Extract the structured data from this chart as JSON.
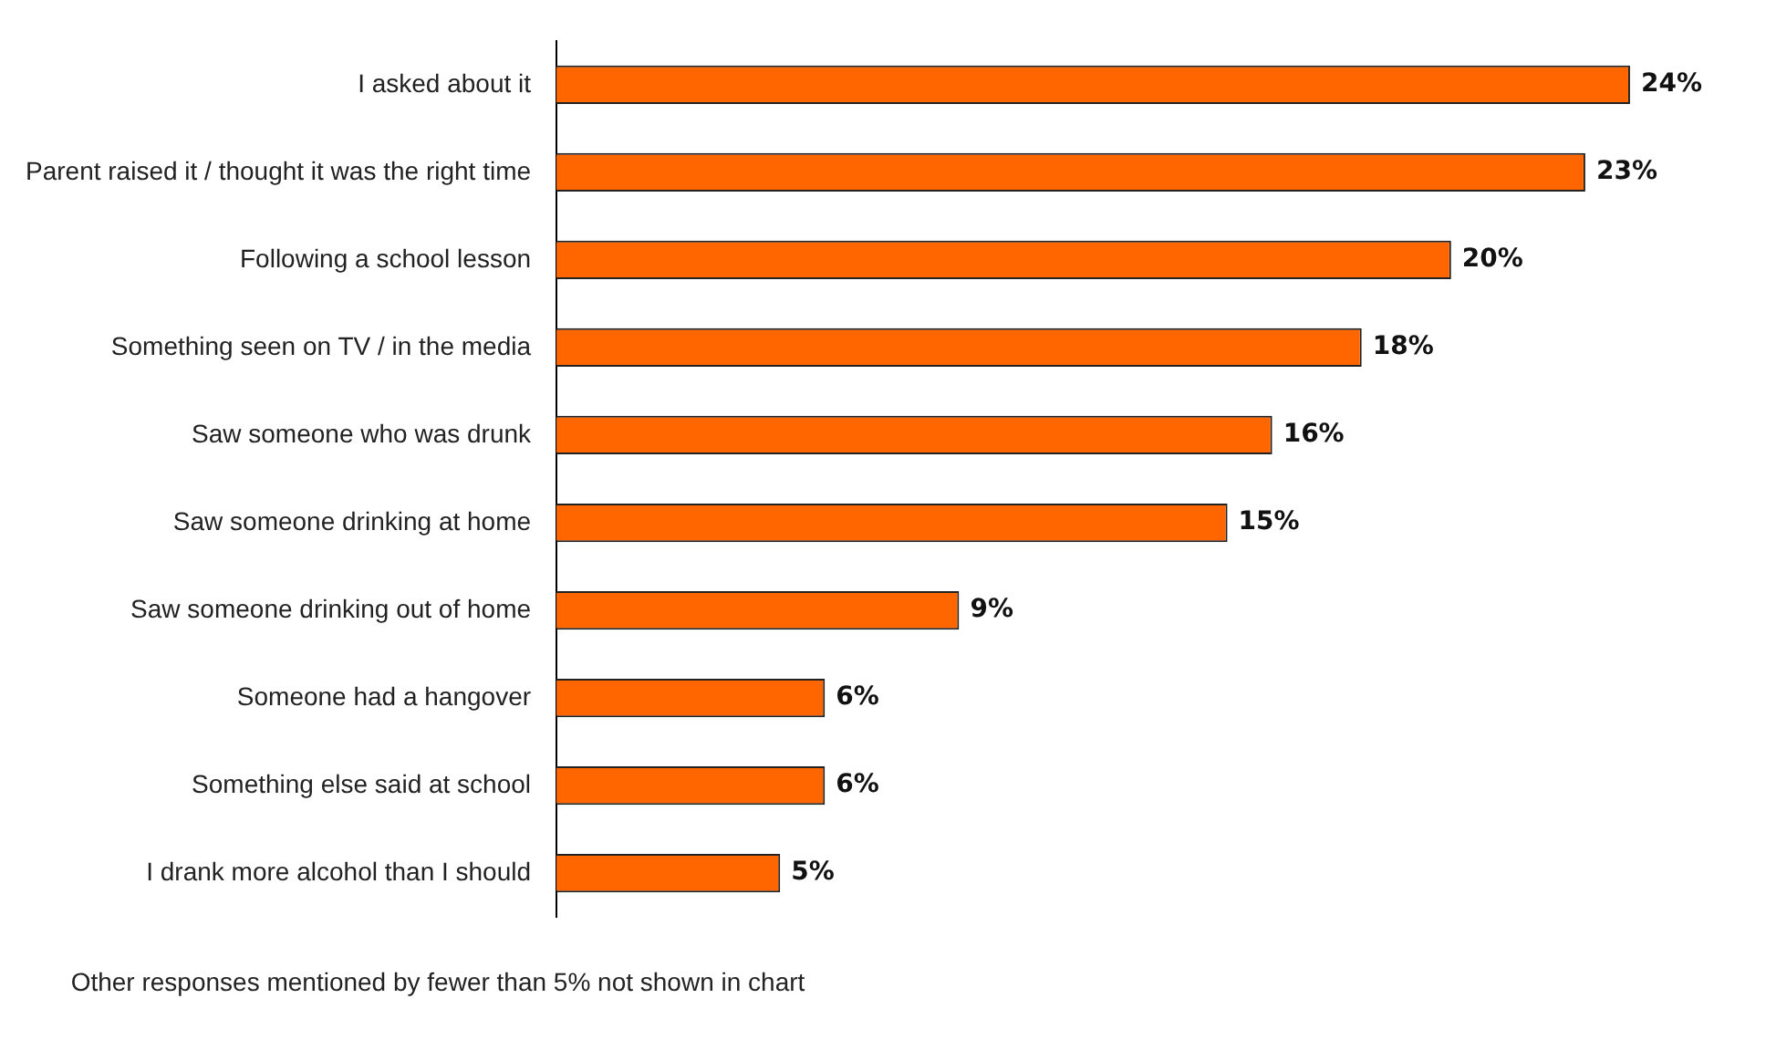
{
  "chart_data": {
    "type": "bar",
    "orientation": "horizontal",
    "categories": [
      "I asked about it",
      "Parent raised it / thought it was the right time",
      "Following a school lesson",
      "Something seen on TV / in the media",
      "Saw someone who was drunk",
      "Saw someone drinking at home",
      "Saw someone drinking out of home",
      "Someone had a hangover",
      "Something else said at school",
      "I drank more alcohol than I should"
    ],
    "values": [
      24,
      23,
      20,
      18,
      16,
      15,
      9,
      6,
      6,
      5
    ],
    "value_labels": [
      "24%",
      "23%",
      "20%",
      "18%",
      "16%",
      "15%",
      "9%",
      "6%",
      "6%",
      "5%"
    ],
    "color": "#ff6600",
    "tick_labels": "y",
    "annotations": [
      "Other responses mentioned by fewer than 5% not shown in chart"
    ]
  }
}
